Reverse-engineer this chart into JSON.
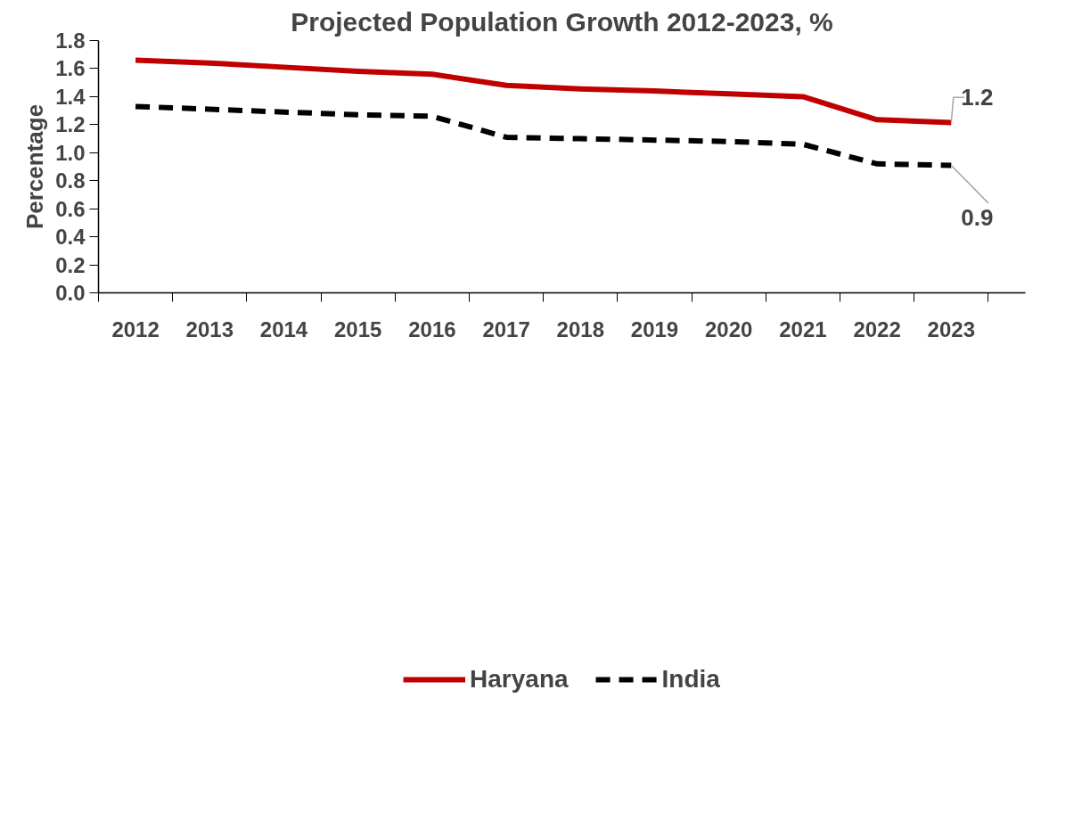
{
  "chart_data": {
    "type": "line",
    "title": "Projected Population Growth 2012-2023, %",
    "ylabel": "Percentage",
    "categories": [
      "2012",
      "2013",
      "2014",
      "2015",
      "2016",
      "2017",
      "2018",
      "2019",
      "2020",
      "2021",
      "2022",
      "2023"
    ],
    "series": [
      {
        "name": "Haryana",
        "color": "#c00000",
        "line_style": "solid",
        "values": [
          1.66,
          1.64,
          1.61,
          1.58,
          1.56,
          1.48,
          1.455,
          1.44,
          1.42,
          1.4,
          1.235,
          1.215
        ]
      },
      {
        "name": "India",
        "color": "#000000",
        "line_style": "dashed",
        "values": [
          1.33,
          1.31,
          1.29,
          1.27,
          1.26,
          1.11,
          1.1,
          1.09,
          1.08,
          1.06,
          0.92,
          0.91
        ]
      }
    ],
    "ylim": [
      0,
      1.8
    ],
    "yticks": [
      {
        "value": 0,
        "label": "0.0"
      },
      0.2,
      0.4,
      0.6,
      0.8,
      {
        "value": 1,
        "label": "1.0"
      },
      1.2,
      1.4,
      1.6,
      1.8
    ],
    "annotations": [
      {
        "text": "1.2",
        "x": "2023",
        "y": 1.215
      },
      {
        "text": "0.9",
        "x": "2023",
        "y": 0.91
      }
    ],
    "grid": false,
    "legend": "bottom",
    "marker": "none"
  }
}
